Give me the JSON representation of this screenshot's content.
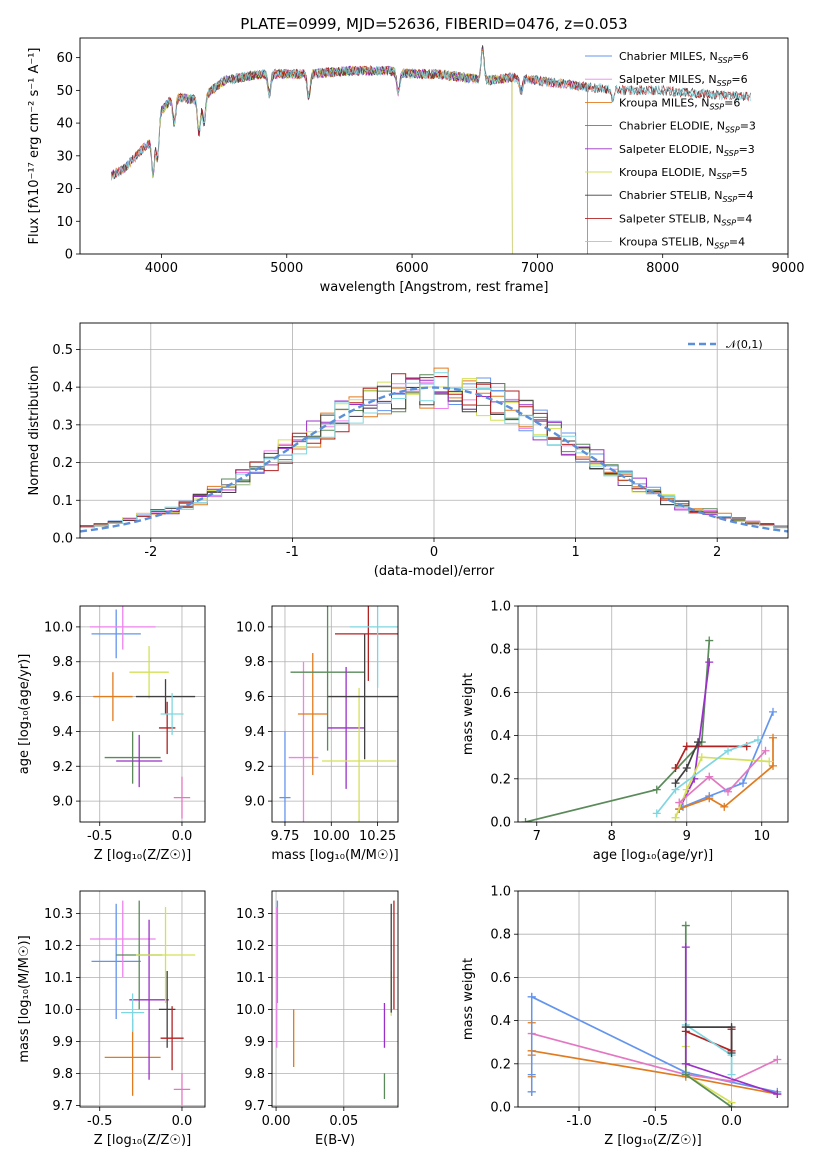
{
  "title": "PLATE=0999, MJD=52636, FIBERID=0476, z=0.053",
  "colors": {
    "Chabrier MILES": "#6495ed",
    "Salpeter MILES": "#ee82ee",
    "Kroupa MILES": "#e07b1f",
    "Chabrier ELODIE": "#5a8a5a",
    "Salpeter ELODIE": "#9b30c8",
    "Kroupa ELODIE": "#d4e157",
    "Chabrier STELIB": "#404040",
    "Salpeter STELIB": "#b22222",
    "Kroupa STELIB": "#7fd6e0",
    "extra": "#e377c2",
    "normal": "#5b8fd9"
  },
  "chart_data": [
    {
      "type": "line",
      "id": "spectrum",
      "title": "PLATE=0999, MJD=52636, FIBERID=0476, z=0.053",
      "xlabel": "wavelength [Angstrom, rest frame]",
      "ylabel": "Flux [fλ10⁻¹⁷ erg cm⁻² s⁻¹ A⁻¹]",
      "xlim": [
        3350,
        9000
      ],
      "ylim": [
        0,
        66
      ],
      "xticks": [
        4000,
        5000,
        6000,
        7000,
        8000,
        9000
      ],
      "yticks": [
        0,
        10,
        20,
        30,
        40,
        50,
        60
      ],
      "grid": false,
      "legend_position": "top-right",
      "continuum": [
        [
          3600,
          24
        ],
        [
          3700,
          26
        ],
        [
          3800,
          30
        ],
        [
          3900,
          34
        ],
        [
          3950,
          40
        ],
        [
          4000,
          44
        ],
        [
          4100,
          48
        ],
        [
          4300,
          47
        ],
        [
          4500,
          53
        ],
        [
          4800,
          55
        ],
        [
          5000,
          55
        ],
        [
          5200,
          55
        ],
        [
          5500,
          56
        ],
        [
          5800,
          56
        ],
        [
          6000,
          55
        ],
        [
          6200,
          55
        ],
        [
          6400,
          54
        ],
        [
          6600,
          53
        ],
        [
          6800,
          54
        ],
        [
          7000,
          53
        ],
        [
          7200,
          52
        ],
        [
          7400,
          51
        ],
        [
          7700,
          50
        ],
        [
          8000,
          50
        ],
        [
          8300,
          49
        ],
        [
          8700,
          48
        ]
      ],
      "series": [
        {
          "name": "Chabrier MILES, NSSP=6",
          "range": [
            3600,
            7400
          ]
        },
        {
          "name": "Salpeter MILES, NSSP=6",
          "range": [
            3600,
            7400
          ]
        },
        {
          "name": "Kroupa MILES, NSSP=6",
          "range": [
            3600,
            7400
          ]
        },
        {
          "name": "Chabrier ELODIE, NSSP=3",
          "range": [
            3900,
            6800
          ]
        },
        {
          "name": "Salpeter ELODIE, NSSP=3",
          "range": [
            3900,
            6800
          ]
        },
        {
          "name": "Kroupa ELODIE, NSSP=5",
          "range": [
            3900,
            6800
          ]
        },
        {
          "name": "Chabrier STELIB, NSSP=4",
          "range": [
            3600,
            8700
          ]
        },
        {
          "name": "Salpeter STELIB, NSSP=4",
          "range": [
            3600,
            8700
          ]
        },
        {
          "name": "Kroupa STELIB, NSSP=4",
          "range": [
            3600,
            8700
          ]
        }
      ]
    },
    {
      "type": "line",
      "id": "residuals",
      "xlabel": "(data-model)/error",
      "ylabel": "Normed distribution",
      "xlim": [
        -2.5,
        2.5
      ],
      "ylim": [
        0,
        0.57
      ],
      "xticks": [
        -2,
        -1,
        0,
        1,
        2
      ],
      "yticks": [
        0.0,
        0.1,
        0.2,
        0.3,
        0.4,
        0.5
      ],
      "grid": true,
      "legend_position": "top-right",
      "legend": "𝒩(0,1)"
    },
    {
      "type": "scatter",
      "id": "age-Z",
      "xlabel": "Z [log₁₀(Z/Z☉)]",
      "ylabel": "age  [log₁₀(age/yr)]",
      "xlim": [
        -0.62,
        0.14
      ],
      "ylim": [
        8.88,
        10.12
      ],
      "xticks": [
        -0.5,
        0.0
      ],
      "yticks": [
        9.0,
        9.2,
        9.4,
        9.6,
        9.8,
        10.0
      ],
      "grid": true,
      "points": [
        {
          "x": -0.4,
          "xerr": 0.15,
          "y": 9.96,
          "yerr": 0.14
        },
        {
          "x": -0.36,
          "xerr": 0.2,
          "y": 10.0,
          "yerr": 0.13
        },
        {
          "x": -0.42,
          "xerr": 0.12,
          "y": 9.6,
          "yerr": 0.14
        },
        {
          "x": -0.3,
          "xerr": 0.17,
          "y": 9.25,
          "yerr": 0.15
        },
        {
          "x": -0.26,
          "xerr": 0.14,
          "y": 9.23,
          "yerr": 0.15
        },
        {
          "x": -0.2,
          "xerr": 0.12,
          "y": 9.74,
          "yerr": 0.15
        },
        {
          "x": -0.1,
          "xerr": 0.18,
          "y": 9.6,
          "yerr": 0.1
        },
        {
          "x": -0.09,
          "xerr": 0.05,
          "y": 9.42,
          "yerr": 0.15
        },
        {
          "x": -0.06,
          "xerr": 0.07,
          "y": 9.5,
          "yerr": 0.12
        },
        {
          "x": 0.0,
          "xerr": 0.05,
          "y": 9.02,
          "yerr": 0.12
        }
      ]
    },
    {
      "type": "scatter",
      "id": "age-mass",
      "xlabel": "mass [log₁₀(M/M☉)]",
      "ylabel": "",
      "xlim": [
        9.68,
        10.36
      ],
      "ylim": [
        8.88,
        10.12
      ],
      "xticks": [
        9.75,
        10.0,
        10.25
      ],
      "yticks": [
        9.0,
        9.2,
        9.4,
        9.6,
        9.8,
        10.0
      ],
      "grid": true,
      "points": [
        {
          "x": 9.75,
          "xerr": 0.03,
          "y": 9.02,
          "yerr": 0.38
        },
        {
          "x": 9.85,
          "xerr": 0.08,
          "y": 9.25,
          "yerr": 0.55
        },
        {
          "x": 9.9,
          "xerr": 0.08,
          "y": 9.5,
          "yerr": 0.35
        },
        {
          "x": 9.98,
          "xerr": 0.2,
          "y": 9.74,
          "yerr": 0.45
        },
        {
          "x": 10.08,
          "xerr": 0.1,
          "y": 9.42,
          "yerr": 0.35
        },
        {
          "x": 10.15,
          "xerr": 0.2,
          "y": 9.23,
          "yerr": 0.42
        },
        {
          "x": 10.18,
          "xerr": 0.2,
          "y": 9.6,
          "yerr": 0.36
        },
        {
          "x": 10.2,
          "xerr": 0.18,
          "y": 9.96,
          "yerr": 0.27
        },
        {
          "x": 10.25,
          "xerr": 0.15,
          "y": 10.0,
          "yerr": 0.35
        }
      ]
    },
    {
      "type": "line",
      "id": "mass-weight-age",
      "xlabel": "age  [log₁₀(age/yr)]",
      "ylabel": "mass weight",
      "xlim": [
        6.75,
        10.35
      ],
      "ylim": [
        0,
        1.0
      ],
      "xticks": [
        7,
        8,
        9,
        10
      ],
      "yticks": [
        0.0,
        0.2,
        0.4,
        0.6,
        0.8,
        1.0
      ],
      "grid": true,
      "series": [
        {
          "color": "Chabrier ELODIE",
          "x": [
            6.85,
            8.6,
            9.2,
            9.3
          ],
          "y": [
            0.0,
            0.15,
            0.37,
            0.84
          ]
        },
        {
          "color": "Salpeter ELODIE",
          "x": [
            8.9,
            9.1,
            9.3
          ],
          "y": [
            0.06,
            0.2,
            0.74
          ]
        },
        {
          "color": "Chabrier MILES",
          "x": [
            8.95,
            9.3,
            9.75,
            10.15
          ],
          "y": [
            0.07,
            0.12,
            0.18,
            0.51
          ]
        },
        {
          "color": "Kroupa MILES",
          "x": [
            8.9,
            9.3,
            9.5,
            10.15,
            10.15
          ],
          "y": [
            0.06,
            0.11,
            0.07,
            0.26,
            0.39
          ]
        },
        {
          "color": "Kroupa ELODIE",
          "x": [
            8.85,
            9.0,
            9.2,
            10.1
          ],
          "y": [
            0.02,
            0.15,
            0.3,
            0.28
          ]
        },
        {
          "color": "extra",
          "x": [
            8.9,
            9.3,
            9.55,
            10.05
          ],
          "y": [
            0.09,
            0.21,
            0.14,
            0.33
          ]
        },
        {
          "color": "Salpeter STELIB",
          "x": [
            8.85,
            9.0,
            9.8
          ],
          "y": [
            0.25,
            0.35,
            0.35
          ]
        },
        {
          "color": "Kroupa STELIB",
          "x": [
            8.6,
            8.85,
            9.55,
            9.95
          ],
          "y": [
            0.04,
            0.15,
            0.33,
            0.38
          ]
        },
        {
          "color": "Chabrier STELIB",
          "x": [
            8.85,
            9.0,
            9.15
          ],
          "y": [
            0.18,
            0.25,
            0.37
          ]
        }
      ]
    },
    {
      "type": "scatter",
      "id": "mass-Z",
      "xlabel": "Z [log₁₀(Z/Z☉)]",
      "ylabel": "mass [log₁₀(M/M☉)]",
      "xlim": [
        -0.62,
        0.14
      ],
      "ylim": [
        9.695,
        10.37
      ],
      "xticks": [
        -0.5,
        0.0
      ],
      "yticks": [
        9.7,
        9.8,
        9.9,
        10.0,
        10.1,
        10.2,
        10.3
      ],
      "grid": true,
      "points": [
        {
          "x": -0.4,
          "xerr": 0.15,
          "y": 10.15,
          "yerr": 0.18
        },
        {
          "x": -0.36,
          "xerr": 0.2,
          "y": 10.22,
          "yerr": 0.12
        },
        {
          "x": -0.3,
          "xerr": 0.17,
          "y": 9.85,
          "yerr": 0.12
        },
        {
          "x": -0.26,
          "xerr": 0.14,
          "y": 10.17,
          "yerr": 0.17
        },
        {
          "x": -0.2,
          "xerr": 0.12,
          "y": 10.03,
          "yerr": 0.25
        },
        {
          "x": -0.1,
          "xerr": 0.18,
          "y": 10.17,
          "yerr": 0.15
        },
        {
          "x": -0.09,
          "xerr": 0.05,
          "y": 10.0,
          "yerr": 0.12
        },
        {
          "x": -0.06,
          "xerr": 0.07,
          "y": 9.91,
          "yerr": 0.1
        },
        {
          "x": -0.3,
          "xerr": 0.07,
          "y": 9.99,
          "yerr": 0.06
        },
        {
          "x": 0.0,
          "xerr": 0.05,
          "y": 9.75,
          "yerr": 0.05
        }
      ]
    },
    {
      "type": "scatter",
      "id": "mass-EBV",
      "xlabel": "E(B-V)",
      "ylabel": "",
      "xlim": [
        -0.003,
        0.09
      ],
      "ylim": [
        9.695,
        10.37
      ],
      "xticks": [
        0.0,
        0.05
      ],
      "yticks": [
        9.7,
        9.8,
        9.9,
        10.0,
        10.1,
        10.2,
        10.3
      ],
      "grid": true,
      "points": [
        {
          "x": 0.001,
          "y": 10.18,
          "yerr": 0.16
        },
        {
          "x": 0.0005,
          "y": 10.1,
          "yerr": 0.22
        },
        {
          "x": 0.013,
          "y": 9.91,
          "yerr": 0.09
        },
        {
          "x": 0.08,
          "y": 9.76,
          "yerr": 0.04
        },
        {
          "x": 0.08,
          "y": 9.95,
          "yerr": 0.07
        },
        {
          "x": 0.085,
          "y": 10.05,
          "yerr": 0.07
        },
        {
          "x": 0.085,
          "y": 10.16,
          "yerr": 0.17
        },
        {
          "x": 0.087,
          "y": 10.17,
          "yerr": 0.17
        }
      ]
    },
    {
      "type": "line",
      "id": "mass-weight-Z",
      "xlabel": "Z [log₁₀(Z/Z☉)]",
      "ylabel": "mass weight",
      "xlim": [
        -1.4,
        0.37
      ],
      "ylim": [
        0,
        1.0
      ],
      "xticks": [
        -1.0,
        -0.5,
        0.0
      ],
      "yticks": [
        0.0,
        0.2,
        0.4,
        0.6,
        0.8,
        1.0
      ],
      "grid": true,
      "series": [
        {
          "color": "Chabrier MILES",
          "x": [
            -1.31,
            -0.3,
            0.3
          ],
          "y": [
            0.51,
            0.16,
            0.07
          ]
        },
        {
          "color": "Kroupa MILES",
          "x": [
            -1.31,
            -0.3,
            0.3
          ],
          "y": [
            0.26,
            0.14,
            0.06
          ]
        },
        {
          "color": "extra",
          "x": [
            -1.31,
            -0.3,
            0.0,
            0.3
          ],
          "y": [
            0.34,
            0.15,
            0.12,
            0.22
          ]
        },
        {
          "color": "Kroupa ELODIE",
          "x": [
            -0.3,
            -0.3,
            0.0
          ],
          "y": [
            0.28,
            0.15,
            0.02
          ]
        },
        {
          "color": "Chabrier ELODIE",
          "x": [
            -0.3,
            -0.3,
            0.0
          ],
          "y": [
            0.84,
            0.15,
            0.0
          ]
        },
        {
          "color": "Salpeter ELODIE",
          "x": [
            -0.3,
            -0.3,
            0.3
          ],
          "y": [
            0.74,
            0.2,
            0.06
          ]
        },
        {
          "color": "Salpeter STELIB",
          "x": [
            -0.3,
            0.0,
            0.0
          ],
          "y": [
            0.35,
            0.26,
            0.36
          ]
        },
        {
          "color": "Kroupa STELIB",
          "x": [
            -0.3,
            0.0,
            0.0
          ],
          "y": [
            0.38,
            0.24,
            0.15
          ]
        },
        {
          "color": "Chabrier STELIB",
          "x": [
            -0.3,
            0.0,
            0.0
          ],
          "y": [
            0.37,
            0.37,
            0.25
          ]
        }
      ],
      "vertical_stacks": [
        {
          "color": "Kroupa MILES",
          "x": -1.31,
          "y": [
            0.07,
            0.14,
            0.24,
            0.26,
            0.39
          ]
        },
        {
          "color": "Chabrier MILES",
          "x": -1.31,
          "y": [
            0.07,
            0.15,
            0.51
          ]
        }
      ]
    }
  ]
}
